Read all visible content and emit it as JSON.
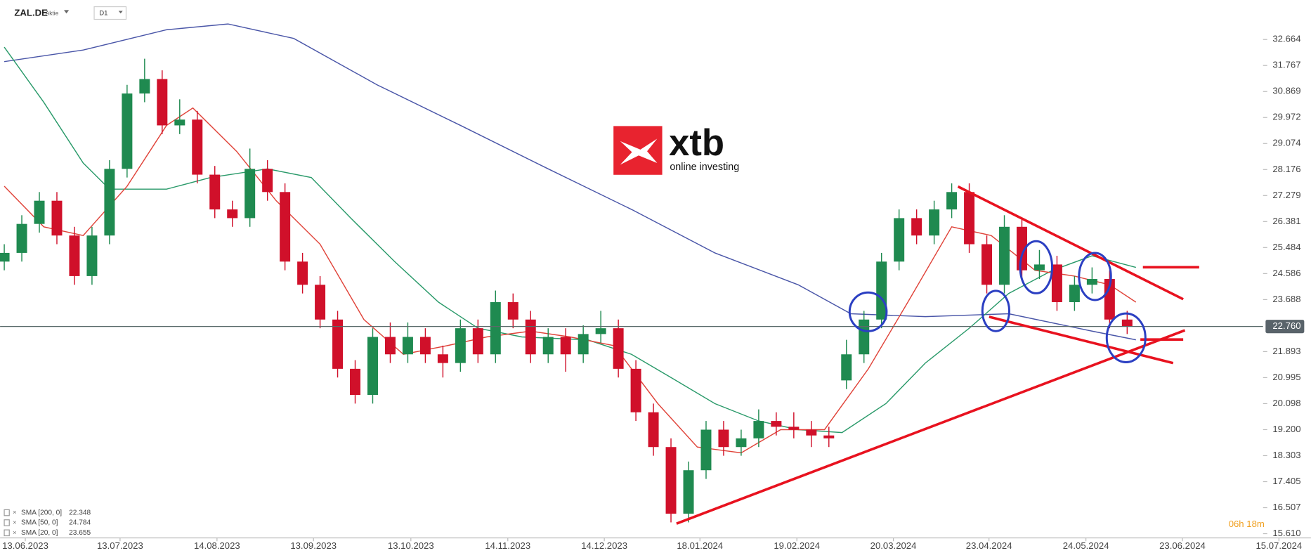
{
  "chart_data": {
    "type": "candlestick",
    "symbol": "ZAL.DE",
    "instrument": "Aktie",
    "timeframe": "D1",
    "countdown": "06h 18m",
    "logo": {
      "brand": "xtb",
      "tagline": "online investing"
    },
    "up_color": "#1f8a50",
    "down_color": "#d0102a",
    "xlim": [
      -0.958,
      297.9
    ],
    "ylim": [
      15.466,
      34.027
    ],
    "xticks": [
      {
        "value": 4.8,
        "label": "13.06.2023"
      },
      {
        "value": 26.4,
        "label": "13.07.2023"
      },
      {
        "value": 48.5,
        "label": "14.08.2023"
      },
      {
        "value": 70.5,
        "label": "13.09.2023"
      },
      {
        "value": 92.7,
        "label": "13.10.2023"
      },
      {
        "value": 114.8,
        "label": "14.11.2023"
      },
      {
        "value": 136.8,
        "label": "14.12.2023"
      },
      {
        "value": 158.6,
        "label": "18.01.2024"
      },
      {
        "value": 180.7,
        "label": "19.02.2024"
      },
      {
        "value": 202.7,
        "label": "20.03.2024"
      },
      {
        "value": 224.5,
        "label": "23.04.2024"
      },
      {
        "value": 246.6,
        "label": "24.05.2024"
      },
      {
        "value": 268.6,
        "label": "23.06.2024"
      },
      {
        "value": 290.6,
        "label": "15.07.2024"
      }
    ],
    "yticks": [
      32.664,
      31.767,
      30.869,
      29.972,
      29.074,
      28.176,
      27.279,
      26.381,
      25.484,
      24.586,
      23.688,
      21.893,
      20.995,
      20.098,
      {
        "value": 19.2,
        "label": "19.200"
      },
      18.303,
      17.405,
      16.507,
      {
        "value": 15.61,
        "label": "15.610"
      }
    ],
    "last_price": {
      "value": 22.76,
      "label": "22.760"
    },
    "x": [
      0,
      4,
      8,
      12,
      16,
      20,
      24,
      28,
      32,
      36,
      40,
      44,
      48,
      52,
      56,
      60,
      64,
      68,
      72,
      76,
      80,
      84,
      88,
      92,
      96,
      100,
      104,
      108,
      112,
      116,
      120,
      124,
      128,
      132,
      136,
      140,
      144,
      148,
      152,
      156,
      160,
      164,
      168,
      172,
      176,
      180,
      184,
      188,
      192,
      196,
      200,
      204,
      208,
      212,
      216,
      220,
      224,
      228,
      232,
      236,
      240,
      244,
      248,
      252,
      256
    ],
    "open": [
      25.0,
      25.3,
      26.3,
      27.1,
      25.9,
      24.5,
      25.9,
      28.2,
      30.8,
      31.3,
      29.7,
      29.9,
      28.0,
      26.8,
      26.5,
      28.2,
      27.4,
      25.0,
      24.2,
      23.0,
      21.3,
      20.4,
      22.4,
      21.8,
      22.4,
      21.8,
      21.5,
      22.7,
      21.8,
      23.6,
      23.0,
      21.8,
      22.4,
      21.8,
      22.5,
      22.7,
      21.3,
      19.8,
      18.6,
      16.3,
      17.8,
      19.2,
      18.6,
      18.9,
      19.5,
      19.3,
      19.2,
      19.0,
      20.9,
      21.8,
      23.0,
      25.0,
      26.5,
      25.9,
      26.8,
      27.4,
      25.6,
      24.2,
      26.2,
      24.7,
      24.9,
      23.6,
      24.2,
      24.4,
      23.0
    ],
    "high": [
      25.6,
      26.6,
      27.4,
      27.4,
      26.2,
      26.2,
      28.5,
      31.1,
      32.0,
      31.6,
      30.6,
      30.2,
      28.3,
      27.1,
      28.9,
      28.5,
      27.7,
      25.3,
      24.5,
      23.3,
      21.6,
      22.7,
      22.9,
      22.9,
      22.7,
      22.1,
      23.0,
      23.0,
      24.0,
      23.9,
      23.3,
      22.7,
      22.7,
      22.8,
      23.3,
      23.0,
      21.6,
      20.1,
      18.9,
      18.1,
      19.5,
      19.5,
      19.2,
      19.9,
      19.8,
      19.8,
      19.5,
      19.3,
      22.3,
      23.3,
      25.3,
      26.8,
      26.8,
      27.1,
      27.7,
      27.7,
      25.9,
      26.6,
      26.5,
      25.4,
      25.2,
      24.5,
      24.8,
      24.7,
      23.3
    ],
    "low": [
      24.7,
      25.0,
      26.0,
      25.6,
      24.2,
      24.2,
      25.6,
      27.9,
      30.5,
      29.4,
      29.4,
      27.7,
      26.5,
      26.2,
      26.2,
      27.1,
      24.7,
      23.9,
      22.7,
      21.0,
      20.1,
      20.1,
      21.5,
      21.5,
      21.5,
      21.0,
      21.2,
      21.5,
      21.5,
      22.7,
      21.5,
      21.5,
      21.2,
      21.5,
      22.2,
      21.0,
      19.5,
      18.3,
      16.0,
      16.0,
      17.5,
      18.3,
      18.3,
      18.6,
      19.0,
      18.9,
      18.6,
      18.6,
      20.6,
      21.5,
      22.7,
      24.7,
      25.6,
      25.6,
      26.5,
      25.3,
      23.9,
      23.9,
      24.4,
      24.4,
      23.3,
      23.3,
      23.9,
      22.7,
      22.5
    ],
    "close": [
      25.3,
      26.3,
      27.1,
      25.9,
      24.5,
      25.9,
      28.2,
      30.8,
      31.3,
      29.7,
      29.9,
      28.0,
      26.8,
      26.5,
      28.2,
      27.4,
      25.0,
      24.2,
      23.0,
      21.3,
      20.4,
      22.4,
      21.8,
      22.4,
      21.8,
      21.5,
      22.7,
      21.8,
      23.6,
      23.0,
      21.8,
      22.4,
      21.8,
      22.5,
      22.7,
      21.3,
      19.8,
      18.6,
      16.3,
      17.8,
      19.2,
      18.6,
      18.9,
      19.5,
      19.3,
      19.2,
      19.0,
      18.9,
      21.8,
      23.0,
      25.0,
      26.5,
      25.9,
      26.8,
      27.4,
      25.6,
      24.2,
      26.2,
      24.7,
      24.9,
      23.6,
      24.2,
      24.4,
      23.0,
      22.76
    ],
    "overlays": [
      {
        "name": "SMA [200, 0]",
        "last": 22.348,
        "color": "#4a56a8",
        "x": [
          0,
          18,
          37,
          51,
          66,
          85,
          104,
          124,
          143,
          162,
          181,
          193,
          210,
          229,
          248,
          258
        ],
        "values": [
          31.9,
          32.3,
          33.0,
          33.2,
          32.7,
          31.1,
          29.7,
          28.2,
          26.8,
          25.3,
          24.2,
          23.2,
          23.1,
          23.2,
          22.6,
          22.3
        ]
      },
      {
        "name": "SMA [50, 0]",
        "last": 24.784,
        "color": "#2a9a6a",
        "x": [
          0,
          9,
          18,
          24,
          37,
          47,
          60,
          70,
          79,
          89,
          99,
          108,
          118,
          133,
          143,
          152,
          162,
          172,
          181,
          191,
          201,
          210,
          220,
          229,
          239,
          248,
          258
        ],
        "values": [
          32.4,
          30.5,
          28.4,
          27.5,
          27.5,
          27.9,
          28.2,
          27.9,
          26.5,
          25.0,
          23.6,
          22.7,
          22.4,
          22.3,
          21.8,
          21.0,
          20.1,
          19.5,
          19.2,
          19.1,
          20.1,
          21.5,
          22.7,
          23.9,
          24.7,
          25.2,
          24.8
        ]
      },
      {
        "name": "SMA [20, 0]",
        "last": 23.655,
        "color": "#e0443a",
        "x": [
          0,
          9,
          18,
          28,
          37,
          43,
          53,
          62,
          72,
          82,
          91,
          101,
          110,
          120,
          129,
          139,
          149,
          158,
          168,
          177,
          187,
          197,
          206,
          216,
          225,
          235,
          244,
          252,
          258
        ],
        "values": [
          27.6,
          26.2,
          25.9,
          27.6,
          29.7,
          30.3,
          28.8,
          27.1,
          25.6,
          23.0,
          21.8,
          22.1,
          22.4,
          22.6,
          22.4,
          22.1,
          20.1,
          18.6,
          18.4,
          19.2,
          19.2,
          21.3,
          23.6,
          26.2,
          25.9,
          24.7,
          24.5,
          24.2,
          23.6
        ]
      }
    ]
  }
}
